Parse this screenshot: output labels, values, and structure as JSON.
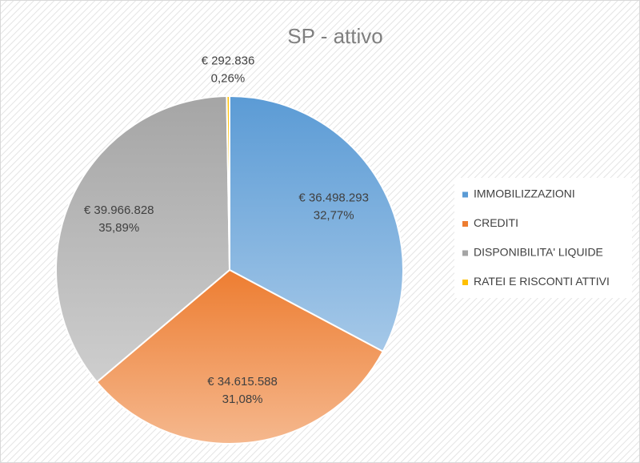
{
  "chart_data": {
    "type": "pie",
    "title": "SP - attivo",
    "categories": [
      "IMMOBILIZZAZIONI",
      "CREDITI",
      "DISPONIBILITA' LIQUIDE",
      "RATEI E RISCONTI ATTIVI"
    ],
    "values": [
      36498293,
      34615588,
      39966828,
      292836
    ],
    "value_labels": [
      "€ 36.498.293",
      "€ 34.615.588",
      "€ 39.966.828",
      "€ 292.836"
    ],
    "percents": [
      32.77,
      31.08,
      35.89,
      0.26
    ],
    "percent_labels": [
      "32,77%",
      "31,08%",
      "35,89%",
      "0,26%"
    ],
    "colors": [
      "#5b9bd5",
      "#ed7d31",
      "#a5a5a5",
      "#ffc000"
    ],
    "legend": "right"
  }
}
